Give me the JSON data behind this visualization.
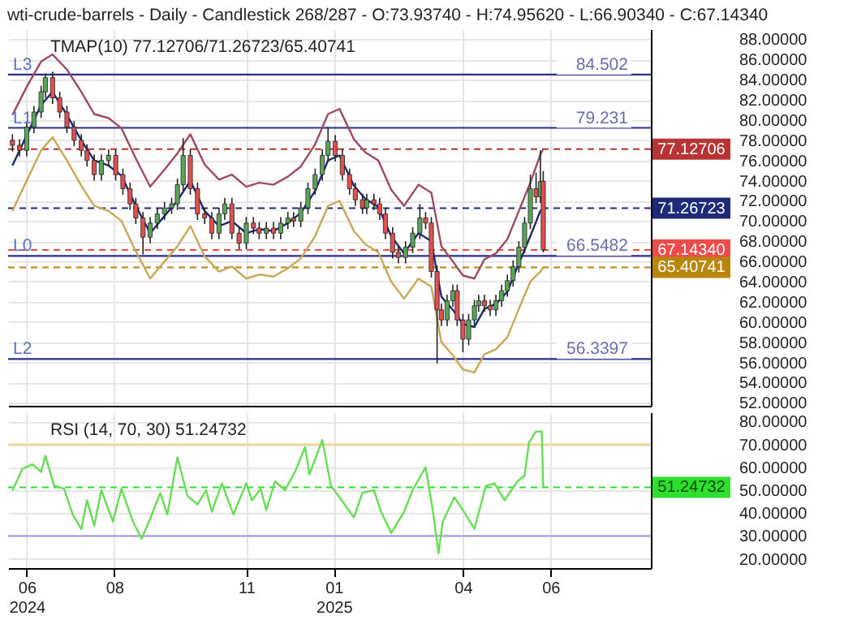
{
  "chart_data": [
    {
      "type": "candlestick",
      "title": "wti-crude-barrels - Daily - Candlestick 268/287 - O:73.93740 - H:74.95620 - L:66.90340 - C:67.14340",
      "annotations": [
        "TMAP(10) 77.12706/71.26723/65.40741",
        {
          "text": "L3",
          "x": "2024-05-19",
          "y": 84.502
        },
        {
          "text": "L1",
          "x": "2024-05-19",
          "y": 79.231
        },
        {
          "text": "L0",
          "x": "2024-05-19",
          "y": 66.5482
        },
        {
          "text": "L2",
          "x": "2024-05-19",
          "y": 56.3397
        }
      ],
      "x": [
        "2024-05-22",
        "2024-05-27",
        "2024-06-01",
        "2024-06-06",
        "2024-06-11",
        "2024-06-14",
        "2024-06-19",
        "2024-06-24",
        "2024-06-29",
        "2024-07-04",
        "2024-07-09",
        "2024-07-13",
        "2024-07-18",
        "2024-07-23",
        "2024-07-28",
        "2024-08-02",
        "2024-08-07",
        "2024-08-12",
        "2024-08-16",
        "2024-08-21",
        "2024-08-26",
        "2024-08-31",
        "2024-09-05",
        "2024-09-10",
        "2024-09-14",
        "2024-09-18",
        "2024-09-23",
        "2024-09-28",
        "2024-10-03",
        "2024-10-08",
        "2024-10-13",
        "2024-10-17",
        "2024-10-22",
        "2024-10-27",
        "2024-11-01",
        "2024-11-06",
        "2024-11-10",
        "2024-11-15",
        "2024-11-20",
        "2024-11-25",
        "2024-11-30",
        "2024-12-04",
        "2024-12-09",
        "2024-12-14",
        "2024-12-19",
        "2024-12-24",
        "2024-12-28",
        "2025-01-02",
        "2025-01-07",
        "2025-01-12",
        "2025-01-16",
        "2025-01-21",
        "2025-01-24",
        "2025-01-29",
        "2025-02-02",
        "2025-02-06",
        "2025-02-11",
        "2025-02-15",
        "2025-02-20",
        "2025-02-25",
        "2025-03-02",
        "2025-03-06",
        "2025-03-10",
        "2025-03-14",
        "2025-03-17",
        "2025-03-21",
        "2025-03-25",
        "2025-03-28",
        "2025-04-01",
        "2025-04-05",
        "2025-04-09",
        "2025-04-12",
        "2025-04-16",
        "2025-04-20",
        "2025-04-24",
        "2025-04-28",
        "2025-05-02",
        "2025-05-06",
        "2025-05-10",
        "2025-05-14",
        "2025-05-18",
        "2025-05-22",
        "2025-05-25",
        "2025-05-27"
      ],
      "ohlc": [
        [
          78.0,
          78.6,
          76.9,
          77.5
        ],
        [
          77.5,
          78.1,
          76.4,
          77.0
        ],
        [
          77.0,
          79.9,
          76.4,
          79.3
        ],
        [
          79.3,
          81.4,
          78.7,
          80.8
        ],
        [
          80.8,
          83.4,
          80.2,
          82.8
        ],
        [
          82.8,
          84.6,
          82.2,
          84.2
        ],
        [
          84.2,
          84.8,
          81.6,
          82.2
        ],
        [
          82.2,
          82.8,
          80.2,
          80.8
        ],
        [
          80.8,
          81.4,
          78.7,
          79.3
        ],
        [
          79.3,
          79.9,
          77.4,
          78.0
        ],
        [
          78.0,
          78.6,
          76.4,
          77.0
        ],
        [
          77.0,
          77.6,
          75.4,
          76.0
        ],
        [
          76.0,
          76.6,
          74.0,
          74.6
        ],
        [
          74.6,
          76.6,
          74.0,
          76.0
        ],
        [
          76.0,
          77.1,
          75.4,
          76.5
        ],
        [
          76.5,
          77.1,
          74.0,
          74.6
        ],
        [
          74.6,
          75.2,
          72.6,
          73.2
        ],
        [
          73.2,
          73.8,
          71.1,
          71.7
        ],
        [
          71.7,
          72.3,
          69.7,
          70.3
        ],
        [
          70.3,
          70.9,
          66.7,
          68.4
        ],
        [
          68.4,
          70.4,
          67.8,
          69.8
        ],
        [
          69.8,
          71.3,
          69.2,
          70.7
        ],
        [
          70.7,
          71.9,
          70.1,
          71.3
        ],
        [
          71.3,
          72.3,
          70.7,
          71.7
        ],
        [
          71.7,
          74.2,
          71.1,
          73.6
        ],
        [
          73.6,
          78.2,
          73.0,
          76.5
        ],
        [
          76.5,
          77.1,
          72.6,
          73.2
        ],
        [
          73.2,
          73.8,
          70.1,
          70.7
        ],
        [
          70.7,
          71.3,
          69.7,
          70.3
        ],
        [
          70.3,
          70.9,
          68.2,
          68.8
        ],
        [
          68.8,
          71.3,
          68.2,
          70.7
        ],
        [
          70.7,
          72.3,
          70.1,
          71.7
        ],
        [
          71.7,
          72.3,
          68.2,
          68.8
        ],
        [
          68.8,
          69.4,
          67.2,
          67.8
        ],
        [
          67.8,
          70.4,
          67.2,
          69.8
        ],
        [
          69.8,
          70.4,
          68.7,
          69.3
        ],
        [
          69.3,
          69.9,
          68.2,
          68.8
        ],
        [
          68.8,
          69.9,
          68.2,
          69.3
        ],
        [
          69.3,
          69.9,
          68.2,
          68.8
        ],
        [
          68.8,
          70.4,
          68.2,
          69.8
        ],
        [
          69.8,
          70.9,
          69.2,
          70.3
        ],
        [
          70.3,
          70.9,
          69.4,
          70.0
        ],
        [
          70.0,
          71.9,
          69.4,
          71.3
        ],
        [
          71.3,
          73.8,
          70.7,
          73.2
        ],
        [
          73.2,
          75.2,
          72.6,
          74.6
        ],
        [
          74.6,
          77.1,
          74.0,
          76.5
        ],
        [
          76.5,
          79.3,
          75.9,
          77.9
        ],
        [
          77.9,
          78.5,
          75.9,
          76.5
        ],
        [
          76.5,
          77.1,
          74.0,
          74.6
        ],
        [
          74.6,
          75.2,
          72.6,
          73.2
        ],
        [
          73.2,
          73.8,
          71.5,
          72.1
        ],
        [
          72.1,
          72.7,
          70.7,
          71.3
        ],
        [
          71.3,
          72.7,
          70.7,
          72.1
        ],
        [
          72.1,
          72.7,
          71.1,
          71.7
        ],
        [
          71.7,
          72.3,
          70.1,
          70.7
        ],
        [
          70.7,
          71.3,
          68.2,
          68.8
        ],
        [
          68.8,
          69.4,
          66.3,
          66.9
        ],
        [
          66.9,
          67.5,
          65.8,
          66.4
        ],
        [
          66.4,
          68.0,
          65.8,
          67.4
        ],
        [
          67.4,
          69.4,
          66.8,
          68.8
        ],
        [
          68.8,
          71.7,
          68.2,
          70.3
        ],
        [
          70.3,
          70.9,
          69.2,
          69.8
        ],
        [
          69.8,
          70.4,
          64.4,
          65.0
        ],
        [
          65.0,
          65.6,
          55.9,
          61.2
        ],
        [
          61.2,
          61.8,
          59.6,
          60.2
        ],
        [
          60.2,
          62.7,
          59.6,
          62.1
        ],
        [
          62.1,
          63.7,
          61.5,
          63.1
        ],
        [
          63.1,
          63.7,
          59.6,
          60.2
        ],
        [
          60.2,
          60.8,
          57.0,
          58.3
        ],
        [
          58.3,
          60.8,
          57.7,
          60.2
        ],
        [
          60.2,
          62.2,
          59.6,
          61.6
        ],
        [
          61.6,
          62.7,
          61.0,
          62.1
        ],
        [
          62.1,
          62.7,
          61.0,
          61.6
        ],
        [
          61.6,
          62.2,
          60.6,
          61.2
        ],
        [
          61.2,
          62.7,
          60.6,
          62.1
        ],
        [
          62.1,
          63.7,
          61.5,
          63.1
        ],
        [
          63.1,
          64.7,
          62.5,
          64.1
        ],
        [
          64.1,
          66.1,
          63.5,
          65.5
        ],
        [
          65.5,
          68.0,
          64.9,
          67.4
        ],
        [
          67.4,
          70.4,
          66.8,
          69.8
        ],
        [
          69.8,
          74.6,
          69.2,
          73.2
        ],
        [
          73.2,
          74.8,
          71.8,
          72.4
        ],
        [
          72.4,
          77.0,
          71.8,
          73.9
        ],
        [
          73.9374,
          74.9562,
          66.9034,
          67.1434
        ]
      ],
      "series": [
        {
          "type": "line",
          "color": "#9e4a63",
          "x": [
            "2024-05-22",
            "2024-06-01",
            "2024-06-11",
            "2024-06-19",
            "2024-06-29",
            "2024-07-09",
            "2024-07-18",
            "2024-07-28",
            "2024-08-06",
            "2024-08-16",
            "2024-08-26",
            "2024-09-05",
            "2024-09-14",
            "2024-09-23",
            "2024-10-03",
            "2024-10-13",
            "2024-10-22",
            "2024-11-01",
            "2024-11-10",
            "2024-11-20",
            "2024-11-30",
            "2024-12-09",
            "2024-12-19",
            "2024-12-28",
            "2025-01-05",
            "2025-01-15",
            "2025-01-23",
            "2025-02-01",
            "2025-02-10",
            "2025-02-19",
            "2025-03-01",
            "2025-03-10",
            "2025-03-17",
            "2025-03-25",
            "2025-04-01",
            "2025-04-09",
            "2025-04-16",
            "2025-04-24",
            "2025-05-02",
            "2025-05-10",
            "2025-05-18",
            "2025-05-25",
            "2025-05-27"
          ],
          "values": [
            80.5,
            83.3,
            85.8,
            86.5,
            85.0,
            82.8,
            80.6,
            80.2,
            79.2,
            76.2,
            73.4,
            75.1,
            76.7,
            78.6,
            75.6,
            74.1,
            74.6,
            73.4,
            73.8,
            73.6,
            74.4,
            75.4,
            77.6,
            80.6,
            81.1,
            78.1,
            76.8,
            76.0,
            73.1,
            71.5,
            73.6,
            72.8,
            67.5,
            66.0,
            64.6,
            64.3,
            66.2,
            66.8,
            68.2,
            71.0,
            73.8,
            76.6,
            77.12706
          ]
        },
        {
          "type": "line",
          "color": "#1c2a6e",
          "x": [
            "2024-05-22",
            "2024-06-01",
            "2024-06-11",
            "2024-06-19",
            "2024-06-29",
            "2024-07-09",
            "2024-07-18",
            "2024-07-28",
            "2024-08-06",
            "2024-08-16",
            "2024-08-26",
            "2024-09-05",
            "2024-09-14",
            "2024-09-23",
            "2024-10-03",
            "2024-10-13",
            "2024-10-22",
            "2024-11-01",
            "2024-11-10",
            "2024-11-20",
            "2024-11-30",
            "2024-12-09",
            "2024-12-19",
            "2024-12-28",
            "2025-01-05",
            "2025-01-15",
            "2025-01-23",
            "2025-02-01",
            "2025-02-10",
            "2025-02-19",
            "2025-03-01",
            "2025-03-10",
            "2025-03-17",
            "2025-03-25",
            "2025-04-01",
            "2025-04-09",
            "2025-04-16",
            "2025-04-24",
            "2025-05-02",
            "2025-05-10",
            "2025-05-18",
            "2025-05-25",
            "2025-05-27"
          ],
          "values": [
            75.5,
            78.5,
            81.5,
            82.8,
            80.5,
            78.0,
            76.0,
            75.5,
            74.5,
            71.5,
            68.8,
            70.5,
            72.0,
            74.0,
            71.0,
            69.5,
            70.0,
            68.8,
            69.2,
            69.0,
            69.8,
            70.8,
            73.0,
            76.0,
            76.5,
            73.5,
            72.2,
            71.4,
            68.5,
            66.8,
            68.8,
            68.0,
            62.5,
            61.2,
            59.8,
            59.5,
            61.3,
            61.8,
            63.0,
            65.8,
            68.5,
            71.0,
            71.26723
          ]
        },
        {
          "type": "line",
          "color": "#c8a855",
          "x": [
            "2024-05-22",
            "2024-06-01",
            "2024-06-11",
            "2024-06-19",
            "2024-06-29",
            "2024-07-09",
            "2024-07-18",
            "2024-07-28",
            "2024-08-06",
            "2024-08-16",
            "2024-08-26",
            "2024-09-05",
            "2024-09-14",
            "2024-09-23",
            "2024-10-03",
            "2024-10-13",
            "2024-10-22",
            "2024-11-01",
            "2024-11-10",
            "2024-11-20",
            "2024-11-30",
            "2024-12-09",
            "2024-12-19",
            "2024-12-28",
            "2025-01-05",
            "2025-01-15",
            "2025-01-23",
            "2025-02-01",
            "2025-02-10",
            "2025-02-19",
            "2025-03-01",
            "2025-03-10",
            "2025-03-17",
            "2025-03-25",
            "2025-04-01",
            "2025-04-09",
            "2025-04-16",
            "2025-04-24",
            "2025-05-02",
            "2025-05-10",
            "2025-05-18",
            "2025-05-25",
            "2025-05-27"
          ],
          "values": [
            71.0,
            74.0,
            77.0,
            78.3,
            76.0,
            73.5,
            71.5,
            71.0,
            70.0,
            67.0,
            64.3,
            66.0,
            67.5,
            69.5,
            66.5,
            65.0,
            65.5,
            64.3,
            64.7,
            64.5,
            65.3,
            66.3,
            68.5,
            71.5,
            72.0,
            69.0,
            67.7,
            66.9,
            64.0,
            62.3,
            64.3,
            63.5,
            58.0,
            56.7,
            55.3,
            55.0,
            56.8,
            57.3,
            58.5,
            61.3,
            64.0,
            65.0,
            65.40741
          ]
        }
      ],
      "xlim": [
        "2024-05-19",
        "2025-08-10"
      ],
      "xticks": [
        {
          "value": "2024-06-01",
          "label": null
        },
        {
          "value": "2024-08-01",
          "label": null
        },
        {
          "value": "2024-11-01",
          "label": null
        },
        {
          "value": "2025-01-01",
          "label": null
        },
        {
          "value": "2025-04-01",
          "label": null
        },
        {
          "value": "2025-06-01",
          "label": null
        }
      ],
      "ylim": [
        51.7,
        89
      ],
      "yticks": [
        {
          "value": 52,
          "label": "52.00000"
        },
        {
          "value": 54,
          "label": "54.00000"
        },
        {
          "value": 56,
          "label": "56.00000"
        },
        {
          "value": 58,
          "label": "58.00000"
        },
        {
          "value": 60,
          "label": "60.00000"
        },
        {
          "value": 62,
          "label": "62.00000"
        },
        {
          "value": 64,
          "label": "64.00000"
        },
        {
          "value": 66,
          "label": "66.00000"
        },
        {
          "value": 68,
          "label": "68.00000"
        },
        {
          "value": 70,
          "label": "70.00000"
        },
        {
          "value": 72,
          "label": "72.00000"
        },
        {
          "value": 74,
          "label": "74.00000"
        },
        {
          "value": 76,
          "label": "76.00000"
        },
        {
          "value": 78,
          "label": "78.00000"
        },
        {
          "value": 80,
          "label": "80.00000"
        },
        {
          "value": 82,
          "label": "82.00000"
        },
        {
          "value": 84,
          "label": "84.00000"
        },
        {
          "value": 86,
          "label": "86.00000"
        },
        {
          "value": 88,
          "label": "88.00000"
        }
      ],
      "ref_lines": [
        {
          "axis": "y",
          "value": 84.502,
          "label": "84.502",
          "color": "#2b2b8c"
        },
        {
          "axis": "y",
          "value": 79.231,
          "label": "79.231",
          "color": "#2b2b8c"
        },
        {
          "axis": "y",
          "value": 66.5482,
          "label": "66.5482",
          "color": "#2b2b8c"
        },
        {
          "axis": "y",
          "value": 56.3397,
          "label": "56.3397",
          "color": "#2b2b8c"
        },
        {
          "axis": "y",
          "value": 77.12706,
          "label": "77.12706",
          "color": "#b83434",
          "line_style": "dashed"
        },
        {
          "axis": "y",
          "value": 71.26723,
          "label": "71.26723",
          "color": "#1e2a78",
          "line_style": "dashed"
        },
        {
          "axis": "y",
          "value": 67.1434,
          "label": "67.14340",
          "color": "#ef4b4b",
          "line_style": "dashed"
        },
        {
          "axis": "y",
          "value": 65.40741,
          "label": "65.40741",
          "color": "#b8860b",
          "line_style": "dashed"
        }
      ],
      "grid": true,
      "tick_labels": "y"
    },
    {
      "type": "line",
      "annotations": [
        "RSI (14, 70, 30) 51.24732"
      ],
      "x": [
        "2024-05-22",
        "2024-05-29",
        "2024-06-05",
        "2024-06-11",
        "2024-06-14",
        "2024-06-20",
        "2024-06-27",
        "2024-07-03",
        "2024-07-09",
        "2024-07-13",
        "2024-07-18",
        "2024-07-23",
        "2024-07-31",
        "2024-08-06",
        "2024-08-14",
        "2024-08-20",
        "2024-08-26",
        "2024-09-02",
        "2024-09-07",
        "2024-09-14",
        "2024-09-21",
        "2024-09-28",
        "2024-10-04",
        "2024-10-08",
        "2024-10-15",
        "2024-10-23",
        "2024-11-01",
        "2024-11-05",
        "2024-11-11",
        "2024-11-15",
        "2024-11-21",
        "2024-11-28",
        "2024-12-05",
        "2024-12-12",
        "2024-12-15",
        "2024-12-24",
        "2024-12-30",
        "2025-01-05",
        "2025-01-15",
        "2025-01-21",
        "2025-01-29",
        "2025-02-03",
        "2025-02-10",
        "2025-02-19",
        "2025-02-25",
        "2025-03-06",
        "2025-03-11",
        "2025-03-15",
        "2025-03-18",
        "2025-03-26",
        "2025-04-01",
        "2025-04-09",
        "2025-04-17",
        "2025-04-23",
        "2025-04-30",
        "2025-05-09",
        "2025-05-14",
        "2025-05-17",
        "2025-05-22",
        "2025-05-26",
        "2025-05-27"
      ],
      "series": [
        {
          "color": "#66dd55",
          "values": [
            49.8,
            59.3,
            61.3,
            58.0,
            65.0,
            52.0,
            50.6,
            39.4,
            33.0,
            45.6,
            34.4,
            50.0,
            36.3,
            50.6,
            36.3,
            28.8,
            37.5,
            48.8,
            39.4,
            64.4,
            47.5,
            43.8,
            50.0,
            40.6,
            53.0,
            39.4,
            53.0,
            45.6,
            50.6,
            41.3,
            53.8,
            50.0,
            58.0,
            68.8,
            56.9,
            71.9,
            51.9,
            46.9,
            38.1,
            48.8,
            50.0,
            40.6,
            31.3,
            40.6,
            50.0,
            60.0,
            41.3,
            22.5,
            36.3,
            46.9,
            41.3,
            33.1,
            51.9,
            53.0,
            45.6,
            53.8,
            56.3,
            70.6,
            75.6,
            75.6,
            51.24732
          ]
        }
      ],
      "xlim": [
        "2024-05-19",
        "2025-08-10"
      ],
      "xticks": [
        {
          "value": "2024-06-01",
          "label": "06\n2024"
        },
        {
          "value": "2024-08-01",
          "label": "08"
        },
        {
          "value": "2024-11-01",
          "label": "11"
        },
        {
          "value": "2025-01-01",
          "label": "01\n2025"
        },
        {
          "value": "2025-04-01",
          "label": "04"
        },
        {
          "value": "2025-06-01",
          "label": "06"
        }
      ],
      "ylim": [
        16,
        84
      ],
      "yticks": [
        {
          "value": 20,
          "label": "20.00000"
        },
        {
          "value": 30,
          "label": "30.00000"
        },
        {
          "value": 40,
          "label": "40.00000"
        },
        {
          "value": 50,
          "label": "50.00000"
        },
        {
          "value": 60,
          "label": "60.00000"
        },
        {
          "value": 70,
          "label": "70.00000"
        },
        {
          "value": 80,
          "label": "80.00000"
        }
      ],
      "ref_lines": [
        {
          "axis": "y",
          "value": 70,
          "color": "#f2d48c"
        },
        {
          "axis": "y",
          "value": 30,
          "color": "#a3a3e0"
        },
        {
          "axis": "y",
          "value": 51.24732,
          "label": "51.24732",
          "color": "#2ee02e",
          "line_style": "dashed"
        }
      ],
      "grid": true
    }
  ]
}
